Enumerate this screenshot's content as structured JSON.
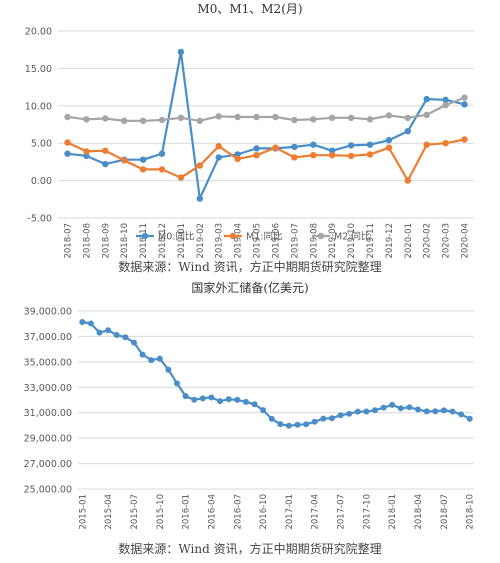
{
  "chart_data": [
    {
      "type": "line",
      "title": "M0、M1、M2(月)",
      "source": "数据来源：Wind 资讯，方正中期期货研究院整理",
      "x": [
        "2018-07",
        "2018-08",
        "2018-09",
        "2018-10",
        "2018-11",
        "2018-12",
        "2019-01",
        "2019-02",
        "2019-03",
        "2019-04",
        "2019-05",
        "2019-06",
        "2019-07",
        "2019-08",
        "2019-09",
        "2019-10",
        "2019-11",
        "2019-12",
        "2020-01",
        "2020-02",
        "2020-03",
        "2020-04"
      ],
      "ylim": [
        -5,
        20
      ],
      "yticks": [
        "-5.00",
        "0.00",
        "5.00",
        "10.00",
        "15.00",
        "20.00"
      ],
      "ytick_values": [
        -5,
        0,
        5,
        10,
        15,
        20
      ],
      "grid": true,
      "legend_position": "bottom",
      "series": [
        {
          "name": "M0:同比",
          "color": "#4a8ec9",
          "values": [
            3.6,
            3.3,
            2.2,
            2.8,
            2.8,
            3.6,
            17.2,
            -2.4,
            3.1,
            3.5,
            4.3,
            4.3,
            4.5,
            4.8,
            4.0,
            4.7,
            4.8,
            5.4,
            6.6,
            10.9,
            10.8,
            10.2
          ]
        },
        {
          "name": "M1:同比",
          "color": "#ed7d31",
          "values": [
            5.1,
            3.9,
            4.0,
            2.7,
            1.5,
            1.5,
            0.4,
            2.0,
            4.6,
            2.9,
            3.4,
            4.4,
            3.1,
            3.4,
            3.4,
            3.3,
            3.5,
            4.4,
            0.0,
            4.8,
            5.0,
            5.5
          ]
        },
        {
          "name": "M2:同比",
          "color": "#a5a5a5",
          "values": [
            8.5,
            8.2,
            8.3,
            8.0,
            8.0,
            8.1,
            8.4,
            8.0,
            8.6,
            8.5,
            8.5,
            8.5,
            8.1,
            8.2,
            8.4,
            8.4,
            8.2,
            8.7,
            8.4,
            8.8,
            10.1,
            11.1
          ]
        }
      ]
    },
    {
      "type": "line",
      "title": "国家外汇储备(亿美元)",
      "source": "数据来源：Wind 资讯，方正中期期货研究院整理",
      "x": [
        "2015-01",
        "2015-02",
        "2015-03",
        "2015-04",
        "2015-05",
        "2015-06",
        "2015-07",
        "2015-08",
        "2015-09",
        "2015-10",
        "2015-11",
        "2015-12",
        "2016-01",
        "2016-02",
        "2016-03",
        "2016-04",
        "2016-05",
        "2016-06",
        "2016-07",
        "2016-08",
        "2016-09",
        "2016-10",
        "2016-11",
        "2016-12",
        "2017-01",
        "2017-02",
        "2017-03",
        "2017-04",
        "2017-05",
        "2017-06",
        "2017-07",
        "2017-08",
        "2017-09",
        "2017-10",
        "2017-11",
        "2017-12",
        "2018-01",
        "2018-02",
        "2018-03",
        "2018-04",
        "2018-05",
        "2018-06",
        "2018-07",
        "2018-08",
        "2018-09",
        "2018-10"
      ],
      "xtick_labels": [
        "2015-01",
        "2015-04",
        "2015-07",
        "2015-10",
        "2016-01",
        "2016-04",
        "2016-07",
        "2016-10",
        "2017-01",
        "2017-04",
        "2017-07",
        "2017-10",
        "2018-01",
        "2018-04",
        "2018-07",
        "2018-10"
      ],
      "ylim": [
        25000,
        39000
      ],
      "yticks": [
        "25,000.00",
        "27,000.00",
        "29,000.00",
        "31,000.00",
        "33,000.00",
        "35,000.00",
        "37,000.00",
        "39,000.00"
      ],
      "ytick_values": [
        25000,
        27000,
        29000,
        31000,
        33000,
        35000,
        37000,
        39000
      ],
      "grid": true,
      "series": [
        {
          "color": "#4a8ec9",
          "values": [
            38134,
            38013,
            37301,
            37482,
            37111,
            36938,
            36513,
            35574,
            35141,
            35255,
            34383,
            33304,
            32309,
            32023,
            32126,
            32197,
            31917,
            32052,
            32011,
            31852,
            31664,
            31207,
            30516,
            30105,
            29982,
            30051,
            30091,
            30295,
            30536,
            30568,
            30807,
            30915,
            31085,
            31092,
            31193,
            31399,
            31615,
            31345,
            31428,
            31249,
            31106,
            31121,
            31179,
            31097,
            30870,
            30531
          ]
        }
      ]
    }
  ]
}
